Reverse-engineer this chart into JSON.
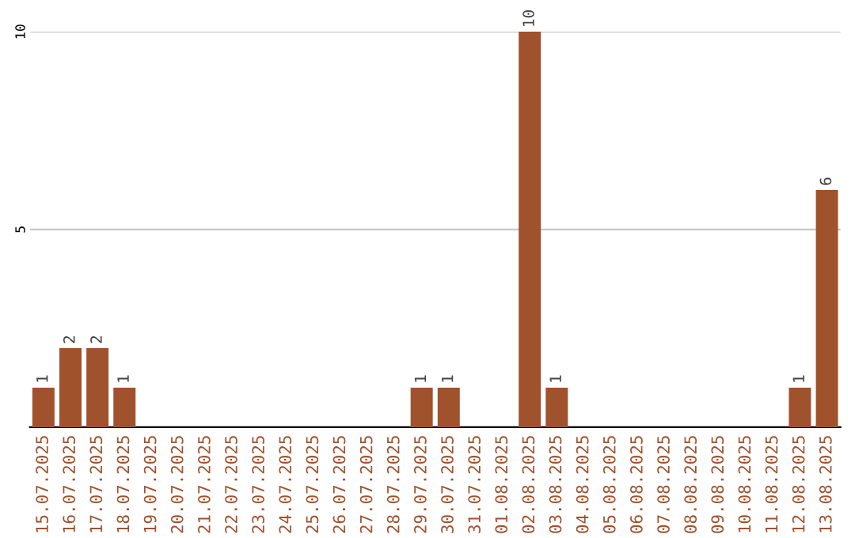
{
  "chart_data": {
    "type": "bar",
    "categories": [
      "15.07.2025",
      "16.07.2025",
      "17.07.2025",
      "18.07.2025",
      "19.07.2025",
      "20.07.2025",
      "21.07.2025",
      "22.07.2025",
      "23.07.2025",
      "24.07.2025",
      "25.07.2025",
      "26.07.2025",
      "27.07.2025",
      "28.07.2025",
      "29.07.2025",
      "30.07.2025",
      "31.07.2025",
      "01.08.2025",
      "02.08.2025",
      "03.08.2025",
      "04.08.2025",
      "05.08.2025",
      "06.08.2025",
      "07.08.2025",
      "08.08.2025",
      "09.08.2025",
      "10.08.2025",
      "11.08.2025",
      "12.08.2025",
      "13.08.2025"
    ],
    "values": [
      1,
      2,
      2,
      1,
      0,
      0,
      0,
      0,
      0,
      0,
      0,
      0,
      0,
      0,
      1,
      1,
      0,
      0,
      10,
      1,
      0,
      0,
      0,
      0,
      0,
      0,
      0,
      0,
      1,
      6
    ],
    "value_labels": [
      "1",
      "2",
      "2",
      "1",
      null,
      null,
      null,
      null,
      null,
      null,
      null,
      null,
      null,
      null,
      "1",
      "1",
      null,
      null,
      "10",
      "1",
      null,
      null,
      null,
      null,
      null,
      null,
      null,
      null,
      "1",
      "6"
    ],
    "color": "#a0522d",
    "ylim": [
      0,
      10
    ],
    "yticks": [
      5,
      10
    ],
    "grid": "y"
  }
}
